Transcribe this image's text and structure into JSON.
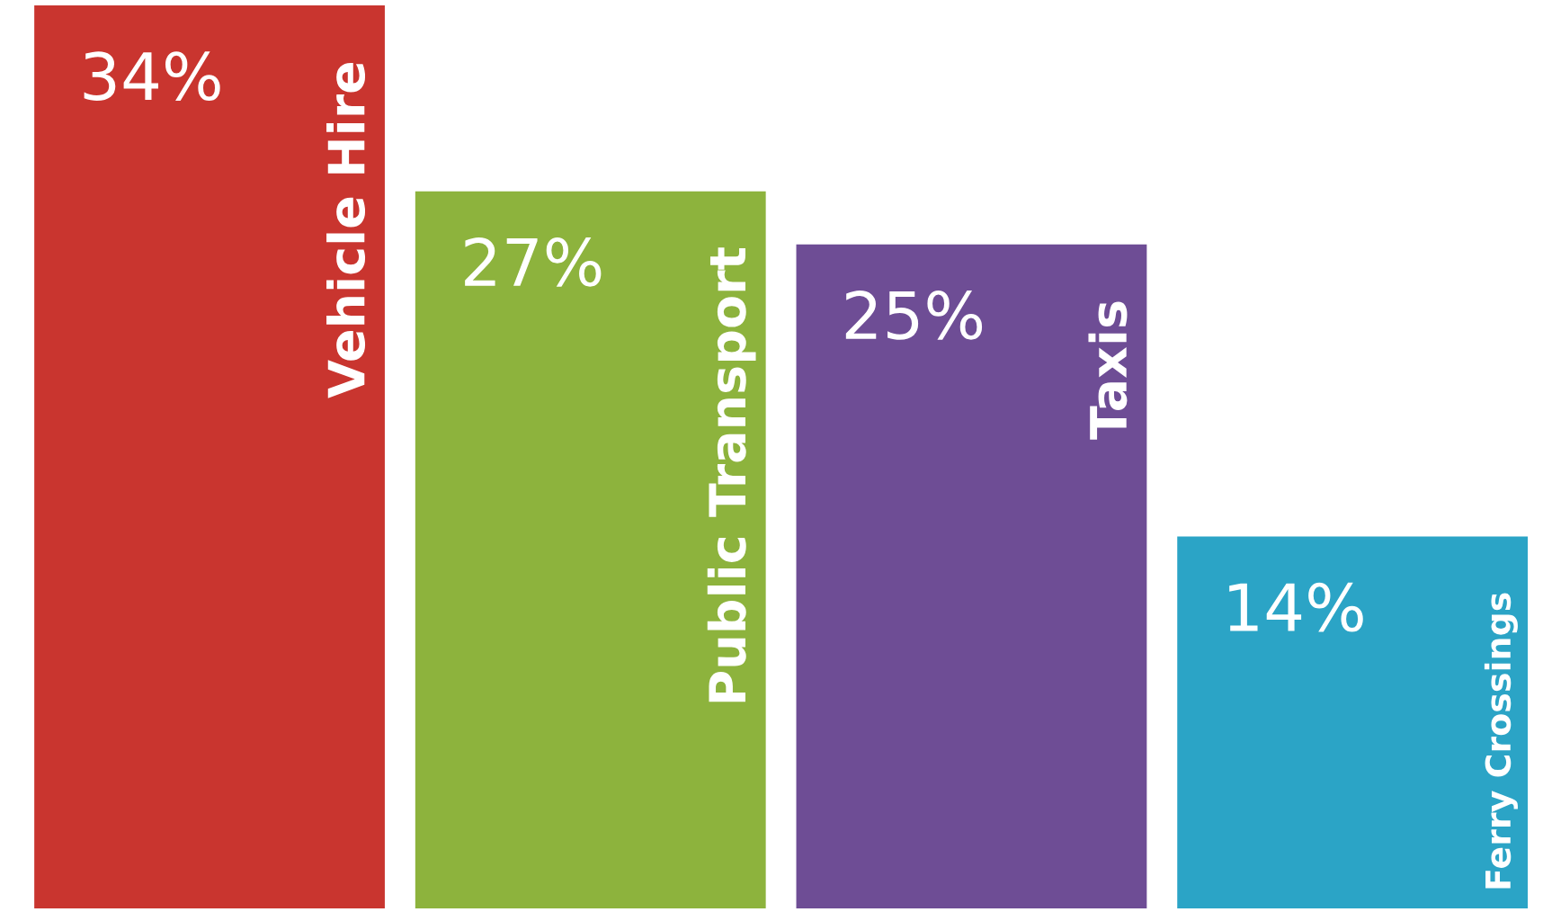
{
  "chart_data": {
    "type": "bar",
    "categories": [
      "Vehicle Hire",
      "Public Transport",
      "Taxis",
      "Ferry Crossings"
    ],
    "values": [
      34,
      27,
      25,
      14
    ],
    "value_labels": [
      "34%",
      "27%",
      "25%",
      "14%"
    ],
    "colors": [
      "#c9352f",
      "#8db33d",
      "#6e4d95",
      "#2ba4c6"
    ]
  }
}
